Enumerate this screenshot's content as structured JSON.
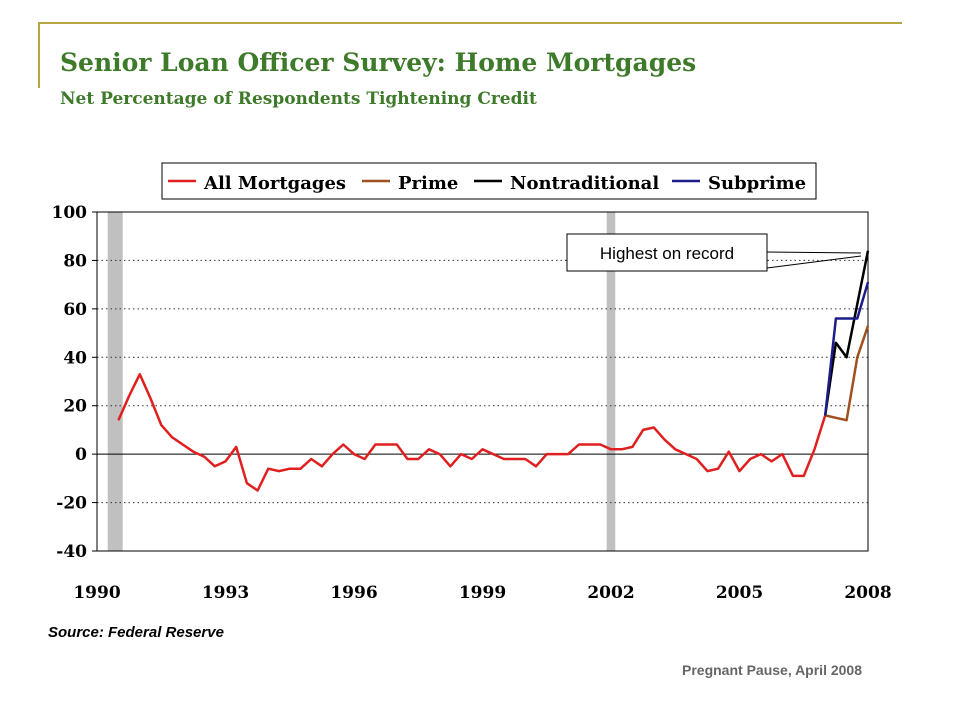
{
  "title": "Senior Loan Officer Survey: Home Mortgages",
  "subtitle": "Net Percentage of Respondents Tightening Credit",
  "source": "Source: Federal Reserve",
  "credit": "Pregnant Pause, April 2008",
  "callout": "Highest on record",
  "chart_data": {
    "type": "line",
    "xlim": [
      1990,
      2008
    ],
    "ylim": [
      -40,
      100
    ],
    "grid": true,
    "legend": "top",
    "x_ticks": [
      "1990",
      "1993",
      "1996",
      "1999",
      "2002",
      "2005",
      "2008"
    ],
    "x_tick_values": [
      1990,
      1993,
      1996,
      1999,
      2002,
      2005,
      2008
    ],
    "y_ticks": [
      "100",
      "80",
      "60",
      "40",
      "20",
      "0",
      "-20",
      "-40"
    ],
    "y_tick_values": [
      100,
      80,
      60,
      40,
      20,
      0,
      -20,
      -40
    ],
    "recessions": [
      [
        1990.25,
        1990.6
      ],
      [
        2001.9,
        2002.1
      ]
    ],
    "series": [
      {
        "name": "All Mortgages",
        "color": "#e02020",
        "points": [
          [
            1990.5,
            14
          ],
          [
            1990.75,
            24
          ],
          [
            1991.0,
            33
          ],
          [
            1991.25,
            23
          ],
          [
            1991.5,
            12
          ],
          [
            1991.75,
            7
          ],
          [
            1992.0,
            4
          ],
          [
            1992.25,
            1
          ],
          [
            1992.5,
            -1
          ],
          [
            1992.75,
            -5
          ],
          [
            1993.0,
            -3
          ],
          [
            1993.25,
            3
          ],
          [
            1993.5,
            -12
          ],
          [
            1993.75,
            -15
          ],
          [
            1994.0,
            -6
          ],
          [
            1994.25,
            -7
          ],
          [
            1994.5,
            -6
          ],
          [
            1994.75,
            -6
          ],
          [
            1995.0,
            -2
          ],
          [
            1995.25,
            -5
          ],
          [
            1995.5,
            0
          ],
          [
            1995.75,
            4
          ],
          [
            1996.0,
            0
          ],
          [
            1996.25,
            -2
          ],
          [
            1996.5,
            4
          ],
          [
            1996.75,
            4
          ],
          [
            1997.0,
            4
          ],
          [
            1997.25,
            -2
          ],
          [
            1997.5,
            -2
          ],
          [
            1997.75,
            2
          ],
          [
            1998.0,
            0
          ],
          [
            1998.25,
            -5
          ],
          [
            1998.5,
            0
          ],
          [
            1998.75,
            -2
          ],
          [
            1999.0,
            2
          ],
          [
            1999.25,
            0
          ],
          [
            1999.5,
            -2
          ],
          [
            1999.75,
            -2
          ],
          [
            2000.0,
            -2
          ],
          [
            2000.25,
            -5
          ],
          [
            2000.5,
            0
          ],
          [
            2000.75,
            0
          ],
          [
            2001.0,
            0
          ],
          [
            2001.25,
            4
          ],
          [
            2001.5,
            4
          ],
          [
            2001.75,
            4
          ],
          [
            2002.0,
            2
          ],
          [
            2002.25,
            2
          ],
          [
            2002.5,
            3
          ],
          [
            2002.75,
            10
          ],
          [
            2003.0,
            11
          ],
          [
            2003.25,
            6
          ],
          [
            2003.5,
            2
          ],
          [
            2003.75,
            0
          ],
          [
            2004.0,
            -2
          ],
          [
            2004.25,
            -7
          ],
          [
            2004.5,
            -6
          ],
          [
            2004.75,
            1
          ],
          [
            2005.0,
            -7
          ],
          [
            2005.25,
            -2
          ],
          [
            2005.5,
            0
          ],
          [
            2005.75,
            -3
          ],
          [
            2006.0,
            0
          ],
          [
            2006.25,
            -9
          ],
          [
            2006.5,
            -9
          ],
          [
            2006.75,
            2
          ],
          [
            2007.0,
            16
          ]
        ]
      },
      {
        "name": "Prime",
        "color": "#a0501e",
        "points": [
          [
            2007.0,
            16
          ],
          [
            2007.25,
            15
          ],
          [
            2007.5,
            14
          ],
          [
            2007.75,
            40
          ],
          [
            2008.0,
            53
          ]
        ]
      },
      {
        "name": "Nontraditional",
        "color": "#000000",
        "points": [
          [
            2007.0,
            16
          ],
          [
            2007.25,
            46
          ],
          [
            2007.5,
            40
          ],
          [
            2007.75,
            62
          ],
          [
            2008.0,
            84
          ]
        ]
      },
      {
        "name": "Subprime",
        "color": "#1c1c8a",
        "points": [
          [
            2007.0,
            16
          ],
          [
            2007.25,
            56
          ],
          [
            2007.5,
            56
          ],
          [
            2007.75,
            56
          ],
          [
            2008.0,
            71
          ]
        ]
      }
    ]
  }
}
